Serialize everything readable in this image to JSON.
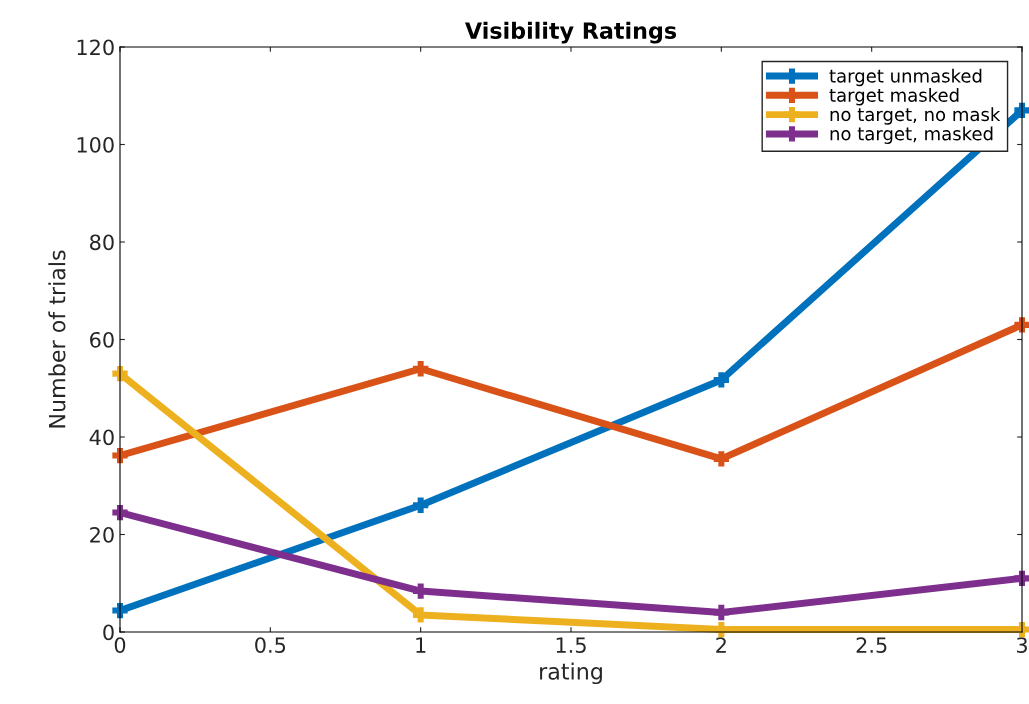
{
  "chart_data": {
    "type": "line",
    "title": "Visibility Ratings",
    "xlabel": "rating",
    "ylabel": "Number of trials",
    "x": [
      0,
      1,
      2,
      3
    ],
    "series": [
      {
        "name": "target unmasked",
        "color": "#0072bd",
        "values": [
          4.4,
          26,
          51.7,
          107
        ]
      },
      {
        "name": "target masked",
        "color": "#d95319",
        "values": [
          36.2,
          54,
          35.5,
          63
        ]
      },
      {
        "name": "no target, no mask",
        "color": "#edb120",
        "values": [
          53,
          3.5,
          0.5,
          0.5
        ]
      },
      {
        "name": "no target, masked",
        "color": "#7e2f8e",
        "values": [
          24.5,
          8.4,
          4,
          11
        ]
      }
    ],
    "xlim": [
      0,
      3
    ],
    "xticks": [
      0,
      0.5,
      1,
      1.5,
      2,
      2.5,
      3
    ],
    "ylim": [
      0,
      120
    ],
    "yticks": [
      0,
      20,
      40,
      60,
      80,
      100,
      120
    ],
    "grid": false,
    "legend": "top right",
    "marker": "cross",
    "line_style": "solid"
  }
}
